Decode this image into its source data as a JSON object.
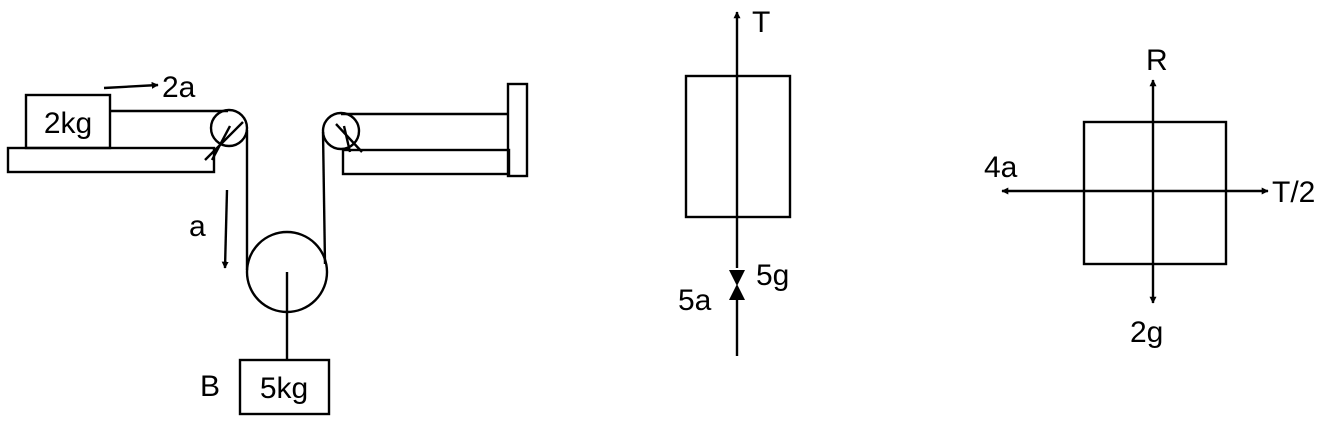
{
  "pulley_system": {
    "block_a_mass": "2kg",
    "block_b_mass": "5kg",
    "block_b_name": "B",
    "accel_block_a": "2a",
    "accel_pulley": "a"
  },
  "fbd_hanging": {
    "tension": "T",
    "weight": "5g",
    "accel": "5a"
  },
  "fbd_table": {
    "normal": "R",
    "tension": "T/2",
    "weight": "2g",
    "accel": "4a"
  },
  "colors": {
    "ink": "#000000",
    "background": "#ffffff"
  }
}
